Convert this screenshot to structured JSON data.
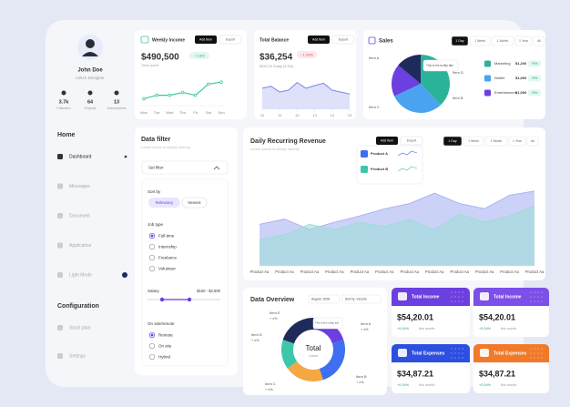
{
  "profile": {
    "name": "John Doe",
    "role": "UI/UX Designer",
    "stats": [
      {
        "value": "3.7k",
        "label": "Followers"
      },
      {
        "value": "64",
        "label": "Projects"
      },
      {
        "value": "13",
        "label": "Subscriptions"
      }
    ]
  },
  "nav": {
    "sections": [
      {
        "title": "Home",
        "items": [
          "Dashboard",
          "Messages",
          "Document",
          "Application",
          "Light Mode"
        ]
      },
      {
        "title": "Configuration",
        "items": [
          "Stock plan",
          "Settings"
        ]
      }
    ]
  },
  "weekly_income": {
    "title": "Weekly Income",
    "buttons": [
      "Add Item",
      "Export"
    ],
    "amount": "$490,500",
    "change": "+ 13%",
    "caption": "Total spent",
    "chart": {
      "type": "line",
      "categories": [
        "Mon",
        "Tue",
        "Wed",
        "Thu",
        "Fri",
        "Sat",
        "Sun"
      ],
      "values": [
        20,
        30,
        30,
        38,
        30,
        62,
        68
      ],
      "ylim": [
        0,
        100
      ],
      "color": "#3ec6a8"
    }
  },
  "total_balance": {
    "title": "Total Balance",
    "buttons": [
      "Add Item",
      "Export"
    ],
    "amount": "$36,254",
    "change": "- 1.29%",
    "caption": "$326.29 Today (4.3%)",
    "chart": {
      "type": "area",
      "x": [
        10,
        10.5,
        11,
        11.5,
        12,
        12.5,
        13,
        13.5,
        14,
        14.5,
        15
      ],
      "values": [
        55,
        60,
        45,
        50,
        70,
        55,
        62,
        68,
        50,
        45,
        40
      ],
      "xlim": [
        10,
        15
      ],
      "xticks": [
        10,
        11,
        12,
        13,
        14,
        15
      ],
      "ylim": [
        0,
        100
      ],
      "color": "#7b86e8"
    }
  },
  "sales": {
    "title": "Sales",
    "tabs": [
      "1 Day",
      "1 Week",
      "1 Month",
      "1 Year",
      "All"
    ],
    "tooltip": "This is the tooltip title",
    "chart": {
      "type": "pie",
      "categories": [
        "Item A",
        "Item B",
        "Item C",
        "Item D"
      ],
      "values": [
        38,
        30,
        18,
        14
      ],
      "colors": [
        "#2bb39a",
        "#4aa3f0",
        "#6c3fe0",
        "#1e2a5a"
      ]
    },
    "legend": [
      {
        "name": "Marketing",
        "amount": "$1,200",
        "change": "+5%"
      },
      {
        "name": "Wallet",
        "amount": "$1,000",
        "change": "+5%"
      },
      {
        "name": "Entertainment",
        "amount": "$1,000",
        "change": "+5%"
      }
    ]
  },
  "revenue": {
    "title": "Daily Recurring Revenue",
    "subtitle": "Lorem ipsum is simply dummy",
    "buttons": [
      "Add Item",
      "Export"
    ],
    "tabs": [
      "1 Day",
      "1 Week",
      "1 Month",
      "1 Year",
      "All"
    ],
    "tooltip": [
      "Product A",
      "Product B"
    ],
    "chart": {
      "type": "area",
      "categories": [
        "Product Aa",
        "Product Aa",
        "Product Aa",
        "Product Aa",
        "Product Aa",
        "Product Aa",
        "Product Aa",
        "Product Aa",
        "Product Aa",
        "Product Aa",
        "Product Aa",
        "Product Aa"
      ],
      "ylim": [
        0,
        100
      ],
      "series": [
        {
          "color": "#aab4f2",
          "values": [
            40,
            45,
            35,
            42,
            48,
            55,
            60,
            70,
            60,
            55,
            68,
            72
          ]
        },
        {
          "color": "#9fdcd8",
          "values": [
            25,
            30,
            40,
            35,
            42,
            38,
            45,
            35,
            50,
            42,
            48,
            58
          ]
        }
      ]
    }
  },
  "filter": {
    "title": "Data filter",
    "subtitle": "Lorem ipsum is simply dummy",
    "set": "Set filter",
    "sort_title": "Sort by",
    "sort": [
      "Relevancy",
      "Newest"
    ],
    "job_title": "Job type",
    "jobs": [
      "Full-time",
      "Internship",
      "Freelance",
      "Volunteer"
    ],
    "salary_title": "Salary",
    "salary": "$150 - $2,500",
    "place_title": "On site/remote",
    "places": [
      "Remote",
      "On site",
      "Hybrid"
    ]
  },
  "overview": {
    "title": "Data Overview",
    "selects": [
      "August, 2028",
      "Sort by: Income"
    ],
    "center": [
      "Total",
      "Label"
    ],
    "tooltip": "This is the tooltip title",
    "chart": {
      "type": "donut",
      "categories": [
        "Item A",
        "Item B",
        "Item C",
        "Item D",
        "Item E"
      ],
      "notes": [
        "+ x%",
        "+ x%",
        "+ x%",
        "+ x%",
        "+ x%"
      ],
      "values": [
        20,
        25,
        20,
        15,
        20
      ],
      "colors": [
        "#6c3fe0",
        "#3f6ff0",
        "#f5a742",
        "#3ec6a8",
        "#1e2a5a"
      ]
    }
  },
  "cards": [
    {
      "title": "Total Income",
      "amount": "$54,20.01",
      "change": "+0.04%",
      "period": "this month",
      "color": "#6c3fe0"
    },
    {
      "title": "Total Income",
      "amount": "$54,20.01",
      "change": "+0.04%",
      "period": "this month",
      "color": "#7b4fe8"
    },
    {
      "title": "Total Expenses",
      "amount": "$34,87.21",
      "change": "+0.04%",
      "period": "this month",
      "color": "#2c4fe0"
    },
    {
      "title": "Total Expenses",
      "amount": "$34,87.21",
      "change": "+0.04%",
      "period": "this month",
      "color": "#f07a2a"
    }
  ]
}
